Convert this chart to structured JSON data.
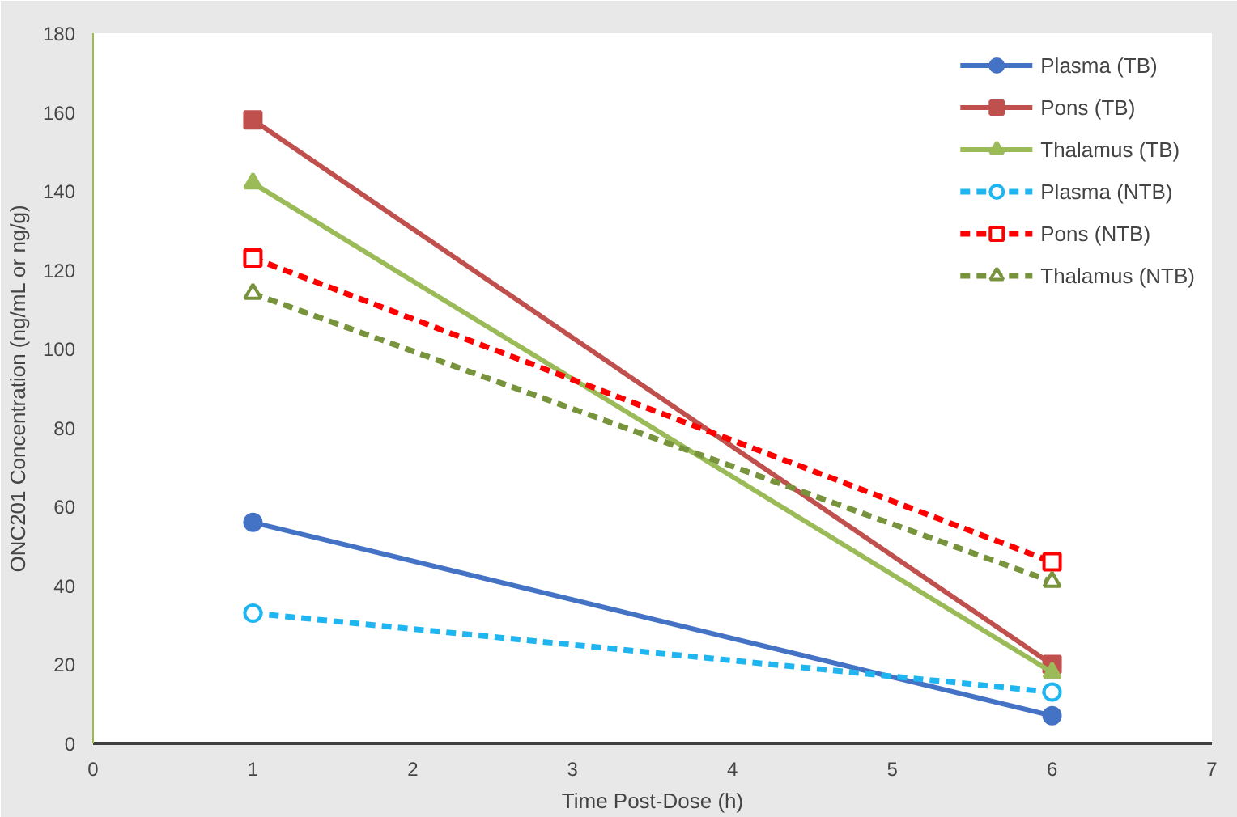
{
  "chart_data": {
    "type": "line",
    "xlabel": "Time Post-Dose (h)",
    "ylabel": "ONC201 Concentration (ng/mL or ng/g)",
    "x": [
      1,
      6
    ],
    "xlim": [
      0,
      7
    ],
    "xticks": [
      0,
      1,
      2,
      3,
      4,
      5,
      6,
      7
    ],
    "ylim": [
      0,
      180
    ],
    "yticks": [
      0,
      20,
      40,
      60,
      80,
      100,
      120,
      140,
      160,
      180
    ],
    "grid": false,
    "legend": "top right",
    "series": [
      {
        "name": "Plasma (TB)",
        "color": "#4472c4",
        "values": [
          56,
          7
        ],
        "marker": "circle",
        "line_style": "solid"
      },
      {
        "name": "Pons (TB)",
        "color": "#c0504d",
        "values": [
          158,
          20
        ],
        "marker": "square",
        "line_style": "solid"
      },
      {
        "name": "Thalamus (TB)",
        "color": "#9bbb59",
        "values": [
          142,
          18
        ],
        "marker": "triangle",
        "line_style": "solid"
      },
      {
        "name": "Plasma (NTB)",
        "color": "#1fb5f0",
        "values": [
          33,
          13
        ],
        "marker": "circle",
        "line_style": "dashed"
      },
      {
        "name": "Pons (NTB)",
        "color": "#ff0000",
        "values": [
          123,
          46
        ],
        "marker": "square",
        "line_style": "dashed"
      },
      {
        "name": "Thalamus (NTB)",
        "color": "#77933c",
        "values": [
          114,
          41
        ],
        "marker": "triangle",
        "line_style": "dashed"
      }
    ]
  }
}
